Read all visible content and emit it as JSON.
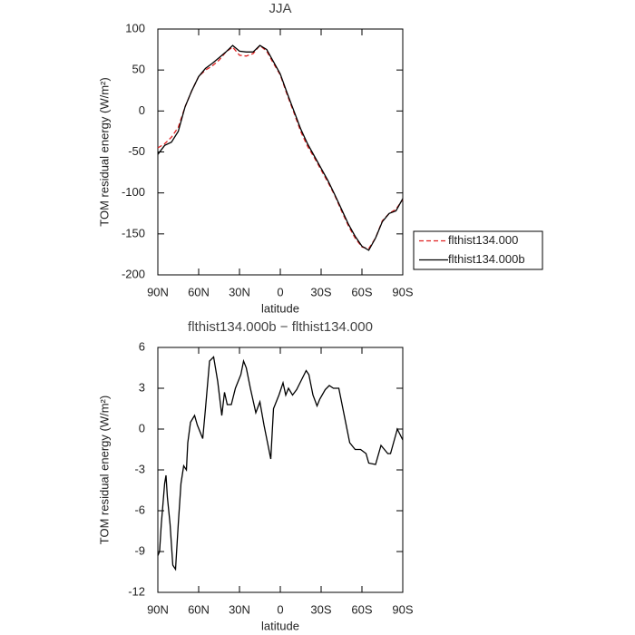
{
  "chart_data": [
    {
      "type": "line",
      "title": "JJA",
      "x_label": "latitude",
      "y_label": "TOM residual energy (W/m²)",
      "x": [
        90,
        85,
        80,
        75,
        70,
        65,
        60,
        55,
        50,
        45,
        40,
        35,
        30,
        25,
        20,
        15,
        10,
        5,
        0,
        -5,
        -10,
        -15,
        -20,
        -25,
        -30,
        -35,
        -40,
        -45,
        -50,
        -55,
        -60,
        -65,
        -70,
        -75,
        -80,
        -85,
        -90
      ],
      "series": [
        {
          "name": "flthist134.000",
          "color": "#e02020",
          "linestyle": "dashed",
          "values": [
            -45,
            -40,
            -32,
            -20,
            5,
            25,
            42,
            50,
            55,
            62,
            72,
            78,
            68,
            67,
            70,
            80,
            73,
            58,
            44,
            20,
            -2,
            -25,
            -43,
            -57,
            -72,
            -87,
            -103,
            -122,
            -140,
            -155,
            -166,
            -168,
            -155,
            -134,
            -125,
            -120,
            -108
          ]
        },
        {
          "name": "flthist134.000b",
          "color": "#000000",
          "linestyle": "solid",
          "values": [
            -53,
            -42,
            -38,
            -25,
            5,
            25,
            42,
            52,
            58,
            65,
            72,
            80,
            73,
            72,
            72,
            80,
            75,
            60,
            45,
            22,
            0,
            -22,
            -40,
            -55,
            -70,
            -85,
            -102,
            -120,
            -138,
            -153,
            -165,
            -170,
            -155,
            -135,
            -125,
            -122,
            -107
          ]
        }
      ],
      "xlim": [
        90,
        -90
      ],
      "xticks": [
        {
          "value": 90,
          "label": "90N"
        },
        {
          "value": 60,
          "label": "60N"
        },
        {
          "value": 30,
          "label": "30N"
        },
        0,
        {
          "value": -30,
          "label": "30S"
        },
        {
          "value": -60,
          "label": "60S"
        },
        {
          "value": -90,
          "label": "90S"
        }
      ],
      "ylim": [
        -200,
        100
      ],
      "yticks": [
        -200,
        -150,
        -100,
        -50,
        0,
        50,
        100
      ],
      "legend": "right",
      "grid": false
    },
    {
      "type": "line",
      "title": "flthist134.000b − flthist134.000",
      "x_label": "latitude",
      "y_label": "TOM residual energy (W/m²)",
      "x": [
        90,
        88.7,
        87.5,
        85,
        84,
        83,
        81,
        79,
        77,
        75,
        73,
        71,
        69,
        68,
        66,
        63,
        61,
        57,
        55,
        52,
        49,
        46,
        43,
        41,
        39,
        36,
        33,
        29,
        27,
        25,
        22,
        18,
        15,
        12,
        7,
        5,
        1,
        -2,
        -4,
        -6,
        -9,
        -12,
        -15,
        -19,
        -21,
        -24,
        -27,
        -29,
        -33,
        -36,
        -39,
        -43,
        -46,
        -51,
        -55,
        -59,
        -63,
        -65,
        -70,
        -74,
        -79,
        -81,
        -86,
        -90
      ],
      "series": [
        {
          "name": "flthist134.000b − flthist134.000",
          "color": "#000000",
          "linestyle": "solid",
          "values": [
            -9.3,
            -9,
            -7,
            -4,
            -3.4,
            -5,
            -7,
            -10,
            -10.3,
            -7,
            -4,
            -2.7,
            -3,
            -1,
            0.5,
            1,
            0.3,
            -0.7,
            1.5,
            5,
            5.3,
            3.5,
            1,
            2.7,
            1.8,
            1.8,
            3,
            4,
            5,
            4.5,
            3,
            1.2,
            2,
            0.3,
            -2.2,
            1.5,
            2.5,
            3.4,
            2.5,
            3,
            2.5,
            2.9,
            3.5,
            4.3,
            4,
            2.5,
            1.7,
            2.2,
            2.9,
            3.2,
            3,
            3,
            1.5,
            -1,
            -1.5,
            -1.5,
            -1.8,
            -2.5,
            -2.6,
            -1.2,
            -1.8,
            -1.8,
            0,
            -0.8
          ]
        }
      ],
      "xlim": [
        90,
        -90
      ],
      "xticks": [
        {
          "value": 90,
          "label": "90N"
        },
        {
          "value": 60,
          "label": "60N"
        },
        {
          "value": 30,
          "label": "30N"
        },
        0,
        {
          "value": -30,
          "label": "30S"
        },
        {
          "value": -60,
          "label": "60S"
        },
        {
          "value": -90,
          "label": "90S"
        }
      ],
      "ylim": [
        -12,
        6
      ],
      "yticks": [
        -12,
        -9,
        -6,
        -3,
        0,
        3,
        6
      ],
      "legend": null,
      "grid": false
    }
  ]
}
